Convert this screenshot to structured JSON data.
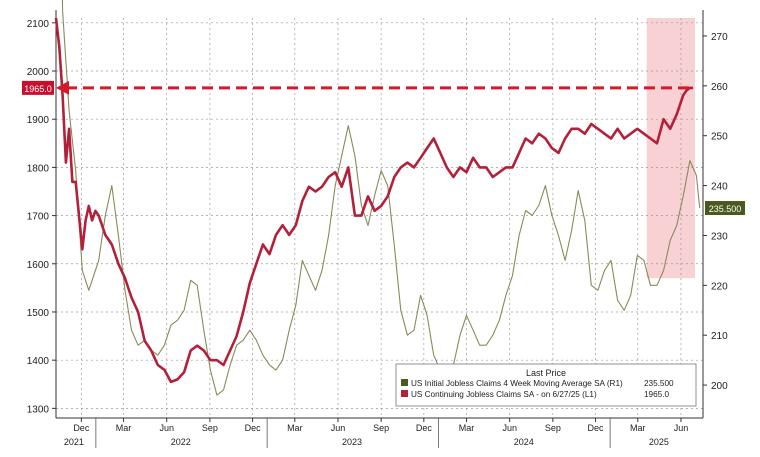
{
  "chart_data": {
    "type": "line",
    "title": "",
    "xlabel": "",
    "ylabel_left": "",
    "ylabel_right": "",
    "ylim_left": [
      1280,
      2110
    ],
    "ylim_right": [
      193.4,
      273.6
    ],
    "left_ticks": [
      1300,
      1400,
      1500,
      1600,
      1700,
      1800,
      1900,
      2000,
      2100
    ],
    "right_ticks": [
      200,
      210,
      220,
      230,
      240,
      250,
      260,
      270
    ],
    "x_range": [
      "2021-10-08",
      "2025-07-18"
    ],
    "x_month_ticks": [
      {
        "label": "Dec",
        "date": "2021-12-01"
      },
      {
        "label": "Mar",
        "date": "2022-03-01"
      },
      {
        "label": "Jun",
        "date": "2022-06-01"
      },
      {
        "label": "Sep",
        "date": "2022-09-01"
      },
      {
        "label": "Dec",
        "date": "2022-12-01"
      },
      {
        "label": "Mar",
        "date": "2023-03-01"
      },
      {
        "label": "Jun",
        "date": "2023-06-01"
      },
      {
        "label": "Sep",
        "date": "2023-09-01"
      },
      {
        "label": "Dec",
        "date": "2023-12-01"
      },
      {
        "label": "Mar",
        "date": "2024-03-01"
      },
      {
        "label": "Jun",
        "date": "2024-06-01"
      },
      {
        "label": "Sep",
        "date": "2024-09-01"
      },
      {
        "label": "Dec",
        "date": "2024-12-01"
      },
      {
        "label": "Mar",
        "date": "2025-03-01"
      },
      {
        "label": "Jun",
        "date": "2025-06-01"
      }
    ],
    "x_year_labels": [
      {
        "label": "2021",
        "date": "2021-11-15"
      },
      {
        "label": "2022",
        "date": "2022-07-01"
      },
      {
        "label": "2023",
        "date": "2023-07-01"
      },
      {
        "label": "2024",
        "date": "2024-07-01"
      },
      {
        "label": "2025",
        "date": "2025-04-15"
      }
    ],
    "grid": true,
    "legend_position": "bottom-right",
    "legend_title": "Last Price",
    "series": [
      {
        "name": "US Initial Jobless Claims 4 Week Moving Average SA  (R1)",
        "legend_value": "235.500",
        "axis": "right",
        "color": "#8a8a5a",
        "last_label": "235.500",
        "points": [
          [
            "2021-10-08",
            345
          ],
          [
            "2021-10-22",
            275
          ],
          [
            "2021-11-05",
            255
          ],
          [
            "2021-11-19",
            243
          ],
          [
            "2021-12-03",
            223
          ],
          [
            "2021-12-17",
            219
          ],
          [
            "2022-01-07",
            225
          ],
          [
            "2022-01-21",
            234
          ],
          [
            "2022-02-04",
            240
          ],
          [
            "2022-02-18",
            230
          ],
          [
            "2022-03-04",
            219
          ],
          [
            "2022-03-18",
            211
          ],
          [
            "2022-04-01",
            208
          ],
          [
            "2022-04-15",
            209
          ],
          [
            "2022-04-29",
            207
          ],
          [
            "2022-05-13",
            206
          ],
          [
            "2022-05-27",
            208
          ],
          [
            "2022-06-10",
            212
          ],
          [
            "2022-06-24",
            213
          ],
          [
            "2022-07-08",
            215
          ],
          [
            "2022-07-22",
            221
          ],
          [
            "2022-08-05",
            220
          ],
          [
            "2022-08-19",
            211
          ],
          [
            "2022-09-02",
            203
          ],
          [
            "2022-09-16",
            198
          ],
          [
            "2022-09-30",
            199
          ],
          [
            "2022-10-14",
            204
          ],
          [
            "2022-10-28",
            208
          ],
          [
            "2022-11-11",
            209
          ],
          [
            "2022-11-25",
            211
          ],
          [
            "2022-12-09",
            209
          ],
          [
            "2022-12-23",
            206
          ],
          [
            "2023-01-06",
            204
          ],
          [
            "2023-01-20",
            203
          ],
          [
            "2023-02-03",
            205
          ],
          [
            "2023-02-17",
            211
          ],
          [
            "2023-03-03",
            216
          ],
          [
            "2023-03-17",
            225
          ],
          [
            "2023-03-31",
            222
          ],
          [
            "2023-04-14",
            219
          ],
          [
            "2023-04-28",
            223
          ],
          [
            "2023-05-12",
            230
          ],
          [
            "2023-05-26",
            240
          ],
          [
            "2023-06-09",
            246
          ],
          [
            "2023-06-23",
            252
          ],
          [
            "2023-07-07",
            246
          ],
          [
            "2023-07-21",
            236
          ],
          [
            "2023-08-04",
            232
          ],
          [
            "2023-08-18",
            238
          ],
          [
            "2023-09-01",
            243
          ],
          [
            "2023-09-15",
            240
          ],
          [
            "2023-09-29",
            228
          ],
          [
            "2023-10-13",
            215
          ],
          [
            "2023-10-27",
            210
          ],
          [
            "2023-11-10",
            211
          ],
          [
            "2023-11-24",
            218
          ],
          [
            "2023-12-08",
            214
          ],
          [
            "2023-12-22",
            206
          ],
          [
            "2024-01-05",
            203
          ],
          [
            "2024-01-19",
            200
          ],
          [
            "2024-02-02",
            204
          ],
          [
            "2024-02-16",
            210
          ],
          [
            "2024-03-01",
            214
          ],
          [
            "2024-03-15",
            211
          ],
          [
            "2024-03-29",
            208
          ],
          [
            "2024-04-12",
            208
          ],
          [
            "2024-04-26",
            210
          ],
          [
            "2024-05-10",
            213
          ],
          [
            "2024-05-24",
            218
          ],
          [
            "2024-06-07",
            222
          ],
          [
            "2024-06-21",
            230
          ],
          [
            "2024-07-05",
            235
          ],
          [
            "2024-07-19",
            234
          ],
          [
            "2024-08-02",
            236
          ],
          [
            "2024-08-16",
            240
          ],
          [
            "2024-08-30",
            234
          ],
          [
            "2024-09-13",
            230
          ],
          [
            "2024-09-27",
            225
          ],
          [
            "2024-10-11",
            231
          ],
          [
            "2024-10-25",
            239
          ],
          [
            "2024-11-08",
            233
          ],
          [
            "2024-11-22",
            220
          ],
          [
            "2024-12-06",
            219
          ],
          [
            "2024-12-20",
            223
          ],
          [
            "2025-01-03",
            225
          ],
          [
            "2025-01-17",
            217
          ],
          [
            "2025-01-31",
            215
          ],
          [
            "2025-02-14",
            218
          ],
          [
            "2025-02-28",
            226
          ],
          [
            "2025-03-14",
            225
          ],
          [
            "2025-03-28",
            220
          ],
          [
            "2025-04-11",
            220
          ],
          [
            "2025-04-25",
            223
          ],
          [
            "2025-05-09",
            229
          ],
          [
            "2025-05-23",
            232
          ],
          [
            "2025-06-06",
            238
          ],
          [
            "2025-06-20",
            245
          ],
          [
            "2025-07-04",
            242
          ],
          [
            "2025-07-11",
            235.5
          ]
        ]
      },
      {
        "name": "US Continuing Jobless Claims SA -  on 6/27/25  (L1)",
        "legend_value": "1965.0",
        "axis": "left",
        "color": "#b3203a",
        "last_label": "1965.0",
        "points": [
          [
            "2021-10-08",
            2110
          ],
          [
            "2021-10-15",
            2050
          ],
          [
            "2021-10-22",
            1950
          ],
          [
            "2021-10-29",
            1810
          ],
          [
            "2021-11-05",
            1880
          ],
          [
            "2021-11-12",
            1770
          ],
          [
            "2021-11-19",
            1770
          ],
          [
            "2021-11-26",
            1700
          ],
          [
            "2021-12-03",
            1630
          ],
          [
            "2021-12-10",
            1690
          ],
          [
            "2021-12-17",
            1720
          ],
          [
            "2021-12-24",
            1690
          ],
          [
            "2021-12-31",
            1710
          ],
          [
            "2022-01-07",
            1700
          ],
          [
            "2022-01-14",
            1680
          ],
          [
            "2022-01-21",
            1660
          ],
          [
            "2022-02-04",
            1640
          ],
          [
            "2022-02-18",
            1600
          ],
          [
            "2022-03-04",
            1570
          ],
          [
            "2022-03-18",
            1530
          ],
          [
            "2022-04-01",
            1500
          ],
          [
            "2022-04-15",
            1440
          ],
          [
            "2022-04-29",
            1420
          ],
          [
            "2022-05-13",
            1390
          ],
          [
            "2022-05-27",
            1380
          ],
          [
            "2022-06-10",
            1355
          ],
          [
            "2022-06-24",
            1360
          ],
          [
            "2022-07-08",
            1375
          ],
          [
            "2022-07-22",
            1420
          ],
          [
            "2022-08-05",
            1430
          ],
          [
            "2022-08-19",
            1420
          ],
          [
            "2022-09-02",
            1400
          ],
          [
            "2022-09-16",
            1400
          ],
          [
            "2022-09-30",
            1390
          ],
          [
            "2022-10-14",
            1420
          ],
          [
            "2022-10-28",
            1450
          ],
          [
            "2022-11-11",
            1500
          ],
          [
            "2022-11-25",
            1560
          ],
          [
            "2022-12-09",
            1600
          ],
          [
            "2022-12-23",
            1640
          ],
          [
            "2023-01-06",
            1620
          ],
          [
            "2023-01-20",
            1660
          ],
          [
            "2023-02-03",
            1680
          ],
          [
            "2023-02-17",
            1660
          ],
          [
            "2023-03-03",
            1680
          ],
          [
            "2023-03-17",
            1730
          ],
          [
            "2023-03-31",
            1760
          ],
          [
            "2023-04-14",
            1750
          ],
          [
            "2023-04-28",
            1760
          ],
          [
            "2023-05-12",
            1780
          ],
          [
            "2023-05-26",
            1790
          ],
          [
            "2023-06-09",
            1760
          ],
          [
            "2023-06-23",
            1800
          ],
          [
            "2023-07-07",
            1700
          ],
          [
            "2023-07-21",
            1700
          ],
          [
            "2023-08-04",
            1740
          ],
          [
            "2023-08-18",
            1710
          ],
          [
            "2023-09-01",
            1720
          ],
          [
            "2023-09-15",
            1740
          ],
          [
            "2023-09-29",
            1780
          ],
          [
            "2023-10-13",
            1800
          ],
          [
            "2023-10-27",
            1810
          ],
          [
            "2023-11-10",
            1800
          ],
          [
            "2023-11-24",
            1820
          ],
          [
            "2023-12-08",
            1840
          ],
          [
            "2023-12-22",
            1860
          ],
          [
            "2024-01-05",
            1830
          ],
          [
            "2024-01-19",
            1800
          ],
          [
            "2024-02-02",
            1780
          ],
          [
            "2024-02-16",
            1800
          ],
          [
            "2024-03-01",
            1790
          ],
          [
            "2024-03-15",
            1820
          ],
          [
            "2024-03-29",
            1800
          ],
          [
            "2024-04-12",
            1800
          ],
          [
            "2024-04-26",
            1780
          ],
          [
            "2024-05-10",
            1790
          ],
          [
            "2024-05-24",
            1800
          ],
          [
            "2024-06-07",
            1800
          ],
          [
            "2024-06-21",
            1830
          ],
          [
            "2024-07-05",
            1860
          ],
          [
            "2024-07-19",
            1850
          ],
          [
            "2024-08-02",
            1870
          ],
          [
            "2024-08-16",
            1860
          ],
          [
            "2024-08-30",
            1840
          ],
          [
            "2024-09-13",
            1830
          ],
          [
            "2024-09-27",
            1860
          ],
          [
            "2024-10-11",
            1880
          ],
          [
            "2024-10-25",
            1880
          ],
          [
            "2024-11-08",
            1870
          ],
          [
            "2024-11-22",
            1890
          ],
          [
            "2024-12-06",
            1880
          ],
          [
            "2024-12-20",
            1870
          ],
          [
            "2025-01-03",
            1860
          ],
          [
            "2025-01-17",
            1880
          ],
          [
            "2025-01-31",
            1860
          ],
          [
            "2025-02-14",
            1870
          ],
          [
            "2025-02-28",
            1880
          ],
          [
            "2025-03-14",
            1870
          ],
          [
            "2025-03-28",
            1860
          ],
          [
            "2025-04-11",
            1850
          ],
          [
            "2025-04-25",
            1900
          ],
          [
            "2025-05-09",
            1880
          ],
          [
            "2025-05-23",
            1910
          ],
          [
            "2025-06-06",
            1950
          ],
          [
            "2025-06-13",
            1960
          ],
          [
            "2025-06-20",
            1965
          ],
          [
            "2025-06-27",
            1965
          ]
        ]
      }
    ],
    "annotations": {
      "highlight_region": {
        "from": "2025-03-20",
        "to": "2025-07-01",
        "y_from": 1570,
        "y_to": 2110,
        "color": "#f7c9cc"
      },
      "dashed_line": {
        "value": 1965.0,
        "from": "2021-10-08",
        "to": "2025-07-01",
        "color": "#d41a2a"
      }
    }
  }
}
